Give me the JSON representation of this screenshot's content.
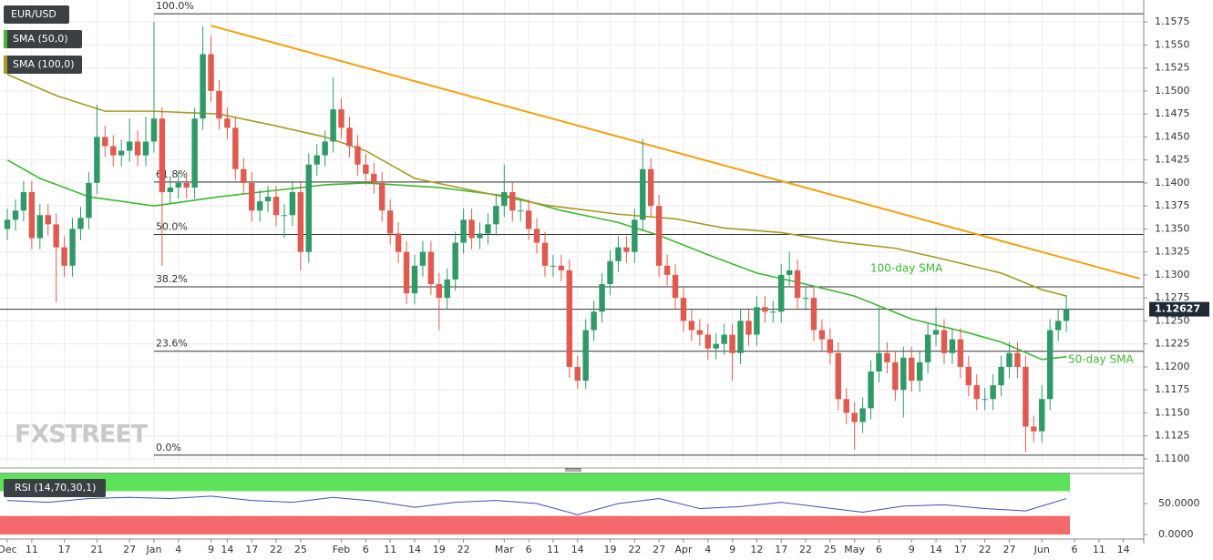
{
  "chart_data": [
    {
      "type": "candlestick",
      "title": "EUR/USD",
      "up_color": "#2f9a67",
      "down_color": "#e05a4f",
      "open": [
        1.135,
        1.136,
        1.137,
        1.139,
        1.134,
        1.1365,
        1.1355,
        1.133,
        1.131,
        1.135,
        1.1362,
        1.14,
        1.145,
        1.144,
        1.143,
        1.1435,
        1.1445,
        1.143,
        1.1445,
        1.147,
        1.139,
        1.1395,
        1.14,
        1.1395,
        1.147,
        1.154,
        1.15,
        1.147,
        1.146,
        1.1415,
        1.14,
        1.137,
        1.138,
        1.1385,
        1.1365,
        1.1365,
        1.139,
        1.1325,
        1.142,
        1.143,
        1.1445,
        1.148,
        1.146,
        1.144,
        1.142,
        1.141,
        1.14,
        1.137,
        1.1345,
        1.1325,
        1.128,
        1.131,
        1.1325,
        1.129,
        1.1275,
        1.1295,
        1.1335,
        1.136,
        1.134,
        1.1345,
        1.1355,
        1.1375,
        1.139,
        1.137,
        1.137,
        1.135,
        1.1335,
        1.131,
        1.131,
        1.1305,
        1.12,
        1.1185,
        1.124,
        1.126,
        1.129,
        1.1315,
        1.133,
        1.1325,
        1.136,
        1.1415,
        1.1375,
        1.131,
        1.13,
        1.1275,
        1.125,
        1.124,
        1.1235,
        1.122,
        1.1225,
        1.1235,
        1.1215,
        1.125,
        1.1235,
        1.1265,
        1.126,
        1.126,
        1.13,
        1.1305,
        1.1275,
        1.1275,
        1.124,
        1.123,
        1.1215,
        1.1165,
        1.115,
        1.114,
        1.1155,
        1.1195,
        1.1215,
        1.1205,
        1.1175,
        1.121,
        1.1185,
        1.1205,
        1.1235,
        1.124,
        1.1215,
        1.123,
        1.12,
        1.118,
        1.1165,
        1.1165,
        1.118,
        1.12,
        1.1215,
        1.12,
        1.1135,
        1.113,
        1.1165,
        1.124,
        1.125
      ],
      "high": [
        1.1372,
        1.1382,
        1.1402,
        1.1402,
        1.1377,
        1.1377,
        1.1367,
        1.1342,
        1.1362,
        1.1374,
        1.1412,
        1.1485,
        1.1462,
        1.1452,
        1.1447,
        1.147,
        1.1457,
        1.1472,
        1.1575,
        1.1482,
        1.1407,
        1.1412,
        1.1412,
        1.1482,
        1.157,
        1.156,
        1.1512,
        1.1482,
        1.1472,
        1.1427,
        1.1412,
        1.1392,
        1.1397,
        1.1397,
        1.1377,
        1.1402,
        1.1402,
        1.1432,
        1.1442,
        1.1457,
        1.1515,
        1.1492,
        1.1472,
        1.1452,
        1.1432,
        1.1422,
        1.1412,
        1.1382,
        1.1357,
        1.1337,
        1.1322,
        1.1337,
        1.1337,
        1.1302,
        1.1307,
        1.1347,
        1.1372,
        1.1372,
        1.1357,
        1.1367,
        1.1387,
        1.142,
        1.1402,
        1.1382,
        1.1382,
        1.1362,
        1.1347,
        1.1322,
        1.1322,
        1.1317,
        1.1212,
        1.1252,
        1.1272,
        1.1302,
        1.1327,
        1.1342,
        1.1342,
        1.1372,
        1.1448,
        1.1427,
        1.1387,
        1.1322,
        1.1312,
        1.1287,
        1.1262,
        1.1252,
        1.1247,
        1.1237,
        1.1247,
        1.1247,
        1.1262,
        1.1262,
        1.1277,
        1.1277,
        1.1272,
        1.1312,
        1.1325,
        1.1317,
        1.1287,
        1.1287,
        1.1252,
        1.1242,
        1.1227,
        1.1177,
        1.1162,
        1.1167,
        1.1207,
        1.1265,
        1.1227,
        1.1217,
        1.1222,
        1.1222,
        1.1217,
        1.1247,
        1.1265,
        1.1252,
        1.1242,
        1.1242,
        1.1212,
        1.1192,
        1.1177,
        1.1192,
        1.1212,
        1.1227,
        1.1227,
        1.1212,
        1.1147,
        1.118,
        1.1252,
        1.1262,
        1.1278
      ],
      "low": [
        1.1338,
        1.1348,
        1.1358,
        1.1328,
        1.1328,
        1.1343,
        1.127,
        1.1298,
        1.1298,
        1.1338,
        1.135,
        1.1388,
        1.1428,
        1.1418,
        1.1418,
        1.1423,
        1.1418,
        1.1418,
        1.1433,
        1.131,
        1.1378,
        1.1383,
        1.1383,
        1.1383,
        1.1458,
        1.1488,
        1.1458,
        1.1448,
        1.1403,
        1.1388,
        1.1358,
        1.1358,
        1.1368,
        1.1353,
        1.134,
        1.1353,
        1.1305,
        1.1313,
        1.1408,
        1.1418,
        1.1433,
        1.1448,
        1.1428,
        1.1408,
        1.1398,
        1.1388,
        1.1358,
        1.1333,
        1.1313,
        1.1268,
        1.1268,
        1.1298,
        1.1278,
        1.124,
        1.1263,
        1.1283,
        1.1323,
        1.1328,
        1.1328,
        1.1333,
        1.1343,
        1.1363,
        1.1358,
        1.1358,
        1.1338,
        1.1323,
        1.1298,
        1.1298,
        1.1293,
        1.1188,
        1.1176,
        1.1176,
        1.1228,
        1.1248,
        1.1278,
        1.1303,
        1.1313,
        1.1313,
        1.1348,
        1.1363,
        1.1298,
        1.1288,
        1.1263,
        1.1238,
        1.1228,
        1.1223,
        1.1208,
        1.1208,
        1.1213,
        1.1185,
        1.1203,
        1.1223,
        1.1223,
        1.1248,
        1.1248,
        1.1248,
        1.1288,
        1.1263,
        1.1263,
        1.1228,
        1.1218,
        1.1203,
        1.1153,
        1.1138,
        1.111,
        1.1128,
        1.1143,
        1.1183,
        1.1193,
        1.1163,
        1.1145,
        1.1173,
        1.1173,
        1.1193,
        1.1223,
        1.1203,
        1.1203,
        1.1188,
        1.1168,
        1.1153,
        1.1153,
        1.1153,
        1.1168,
        1.1188,
        1.1188,
        1.1107,
        1.1118,
        1.1118,
        1.1153,
        1.1228,
        1.1238
      ],
      "close": [
        1.136,
        1.137,
        1.139,
        1.134,
        1.1365,
        1.1355,
        1.133,
        1.131,
        1.135,
        1.1362,
        1.14,
        1.145,
        1.144,
        1.143,
        1.1435,
        1.1445,
        1.143,
        1.1445,
        1.147,
        1.139,
        1.1395,
        1.14,
        1.1395,
        1.147,
        1.154,
        1.15,
        1.147,
        1.146,
        1.1415,
        1.14,
        1.137,
        1.138,
        1.1385,
        1.1365,
        1.1365,
        1.139,
        1.1325,
        1.142,
        1.143,
        1.1445,
        1.148,
        1.146,
        1.144,
        1.142,
        1.141,
        1.14,
        1.137,
        1.1345,
        1.1325,
        1.128,
        1.131,
        1.1325,
        1.129,
        1.1275,
        1.1295,
        1.1335,
        1.136,
        1.134,
        1.1345,
        1.1355,
        1.1375,
        1.139,
        1.137,
        1.137,
        1.135,
        1.1335,
        1.131,
        1.131,
        1.1305,
        1.12,
        1.1185,
        1.124,
        1.126,
        1.129,
        1.1315,
        1.133,
        1.1325,
        1.136,
        1.1415,
        1.1375,
        1.131,
        1.13,
        1.1275,
        1.125,
        1.124,
        1.1235,
        1.122,
        1.1225,
        1.1235,
        1.1215,
        1.125,
        1.1235,
        1.1265,
        1.126,
        1.126,
        1.13,
        1.1305,
        1.1275,
        1.1275,
        1.124,
        1.123,
        1.1215,
        1.1165,
        1.115,
        1.114,
        1.1155,
        1.1195,
        1.1215,
        1.1205,
        1.1175,
        1.121,
        1.1185,
        1.1205,
        1.1235,
        1.124,
        1.1215,
        1.123,
        1.12,
        1.118,
        1.1165,
        1.1165,
        1.118,
        1.12,
        1.1215,
        1.12,
        1.1135,
        1.113,
        1.1165,
        1.124,
        1.125,
        1.12627
      ],
      "overlays": [
        {
          "name": "SMA (50,0)",
          "color": "#3cb82f",
          "x": [
            0,
            4,
            10,
            18,
            26,
            31,
            39,
            44,
            53,
            62,
            68,
            75,
            80,
            86,
            92,
            97,
            104,
            111,
            118,
            122,
            127,
            130
          ],
          "values": [
            1.1425,
            1.1405,
            1.1385,
            1.1375,
            1.1385,
            1.139,
            1.1398,
            1.14,
            1.1395,
            1.1385,
            1.137,
            1.1357,
            1.1343,
            1.1322,
            1.1302,
            1.1292,
            1.1277,
            1.1252,
            1.1237,
            1.1227,
            1.1208,
            1.1211
          ]
        },
        {
          "name": "SMA (100,0)",
          "color": "#a69b22",
          "x": [
            0,
            6,
            12,
            18,
            26,
            33,
            39,
            44,
            50,
            57,
            66,
            75,
            82,
            88,
            95,
            102,
            109,
            115,
            122,
            127,
            130
          ],
          "values": [
            1.1518,
            1.1495,
            1.1478,
            1.1478,
            1.1475,
            1.1462,
            1.145,
            1.1435,
            1.1405,
            1.1392,
            1.1376,
            1.1366,
            1.1361,
            1.1351,
            1.1346,
            1.1336,
            1.1329,
            1.1317,
            1.1302,
            1.1284,
            1.1277
          ]
        },
        {
          "color": "#f5a00f",
          "x": [
            25,
            139
          ],
          "values": [
            1.1571,
            1.1296
          ]
        }
      ],
      "levels": [
        {
          "label": "100.0%",
          "value": 1.1584
        },
        {
          "label": "61.8%",
          "value": 1.1401
        },
        {
          "label": "50.0%",
          "value": 1.1344
        },
        {
          "label": "38.2%",
          "value": 1.1287
        },
        {
          "label": "23.6%",
          "value": 1.1217
        },
        {
          "label": "0.0%",
          "value": 1.1104
        }
      ],
      "last_price": 1.12627,
      "annotations": [
        "100-day SMA",
        "50-day SMA"
      ],
      "logo": "FXSTREET",
      "xlim": [
        -0.9,
        139.5
      ],
      "ylim": [
        1.1092,
        1.1591
      ],
      "yticks": [
        {
          "value": 1.11,
          "label": "1.1100"
        },
        {
          "value": 1.1125,
          "label": "1.1125"
        },
        {
          "value": 1.115,
          "label": "1.1150"
        },
        {
          "value": 1.1175,
          "label": "1.1175"
        },
        {
          "value": 1.12,
          "label": "1.1200"
        },
        {
          "value": 1.1225,
          "label": "1.1225"
        },
        {
          "value": 1.125,
          "label": "1.1250"
        },
        {
          "value": 1.1275,
          "label": "1.1275"
        },
        {
          "value": 1.13,
          "label": "1.1300"
        },
        {
          "value": 1.1325,
          "label": "1.1325"
        },
        {
          "value": 1.135,
          "label": "1.1350"
        },
        {
          "value": 1.1375,
          "label": "1.1375"
        },
        {
          "value": 1.14,
          "label": "1.1400"
        },
        {
          "value": 1.1425,
          "label": "1.1425"
        },
        {
          "value": 1.145,
          "label": "1.1450"
        },
        {
          "value": 1.1475,
          "label": "1.1475"
        },
        {
          "value": 1.15,
          "label": "1.1500"
        },
        {
          "value": 1.1525,
          "label": "1.1525"
        },
        {
          "value": 1.155,
          "label": "1.1550"
        },
        {
          "value": 1.1575,
          "label": "1.1575"
        }
      ],
      "xticks": [
        {
          "value": 0,
          "label": "Dec"
        },
        {
          "value": 3,
          "label": "11"
        },
        {
          "value": 7,
          "label": "17"
        },
        {
          "value": 11,
          "label": "21"
        },
        {
          "value": 15,
          "label": "27"
        },
        {
          "value": 18,
          "label": "Jan"
        },
        {
          "value": 21,
          "label": "4"
        },
        {
          "value": 25,
          "label": "9"
        },
        {
          "value": 27,
          "label": "14"
        },
        {
          "value": 30,
          "label": "17"
        },
        {
          "value": 33,
          "label": "22"
        },
        {
          "value": 36,
          "label": "25"
        },
        {
          "value": 41,
          "label": "Feb"
        },
        {
          "value": 44,
          "label": "6"
        },
        {
          "value": 47,
          "label": "11"
        },
        {
          "value": 50,
          "label": "14"
        },
        {
          "value": 53,
          "label": "19"
        },
        {
          "value": 56,
          "label": "22"
        },
        {
          "value": 61,
          "label": "Mar"
        },
        {
          "value": 64,
          "label": "6"
        },
        {
          "value": 67,
          "label": "11"
        },
        {
          "value": 70,
          "label": "14"
        },
        {
          "value": 74,
          "label": "19"
        },
        {
          "value": 77,
          "label": "22"
        },
        {
          "value": 80,
          "label": "27"
        },
        {
          "value": 83,
          "label": "Apr"
        },
        {
          "value": 86,
          "label": "4"
        },
        {
          "value": 89,
          "label": "9"
        },
        {
          "value": 92,
          "label": "12"
        },
        {
          "value": 95,
          "label": "17"
        },
        {
          "value": 98,
          "label": "22"
        },
        {
          "value": 101,
          "label": "25"
        },
        {
          "value": 104,
          "label": "May"
        },
        {
          "value": 107,
          "label": "6"
        },
        {
          "value": 111,
          "label": "9"
        },
        {
          "value": 114,
          "label": "14"
        },
        {
          "value": 117,
          "label": "17"
        },
        {
          "value": 120,
          "label": "22"
        },
        {
          "value": 123,
          "label": "27"
        },
        {
          "value": 127,
          "label": "Jun"
        },
        {
          "value": 131,
          "label": "6"
        },
        {
          "value": 134,
          "label": "11"
        },
        {
          "value": 137,
          "label": "14"
        }
      ],
      "grid": true
    },
    {
      "type": "line",
      "title": "RSI (14,70,30,1)",
      "series": [
        {
          "color": "#3b4fb8",
          "x": [
            0,
            5,
            10,
            15,
            20,
            25,
            30,
            35,
            40,
            45,
            50,
            55,
            60,
            65,
            70,
            75,
            80,
            85,
            90,
            95,
            100,
            105,
            110,
            115,
            120,
            125,
            130
          ],
          "values": [
            55,
            52,
            58,
            60,
            58,
            62,
            55,
            52,
            60,
            54,
            44,
            52,
            55,
            50,
            32,
            50,
            58,
            42,
            45,
            52,
            44,
            36,
            46,
            48,
            42,
            38,
            58
          ]
        }
      ],
      "ylim": [
        0,
        100
      ],
      "overbought": 70,
      "oversold": 30,
      "overbought_color": "#5de35a",
      "oversold_color": "#f46a6a",
      "yticks": [
        {
          "value": 50,
          "label": "50.0000"
        },
        {
          "value": 0,
          "label": "0.0000"
        }
      ]
    }
  ]
}
